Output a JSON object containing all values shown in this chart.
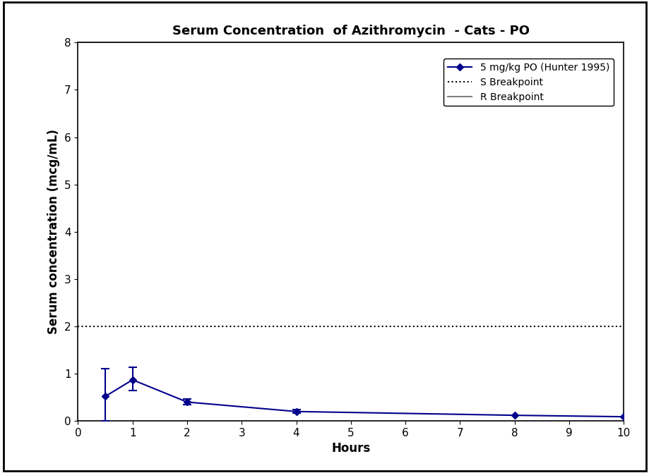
{
  "title": "Serum Concentration  of Azithromycin  - Cats - PO",
  "xlabel": "Hours",
  "ylabel": "Serum concentration (mcg/mL)",
  "xlim": [
    0,
    10
  ],
  "ylim": [
    0,
    8
  ],
  "xticks": [
    0,
    1,
    2,
    3,
    4,
    5,
    6,
    7,
    8,
    9,
    10
  ],
  "yticks": [
    0,
    1,
    2,
    3,
    4,
    5,
    6,
    7,
    8
  ],
  "x": [
    0.5,
    1.0,
    2.0,
    4.0,
    8.0,
    10.0
  ],
  "y": [
    0.52,
    0.87,
    0.4,
    0.2,
    0.12,
    0.09
  ],
  "yerr_neg": [
    0.52,
    0.22,
    0.05,
    0.03,
    0.0,
    0.0
  ],
  "yerr_pos": [
    0.58,
    0.27,
    0.07,
    0.04,
    0.0,
    0.0
  ],
  "has_errorbar": [
    true,
    true,
    true,
    true,
    false,
    false
  ],
  "line_color": "#00008B",
  "marker": "D",
  "marker_size": 5,
  "S_breakpoint": 2.0,
  "R_breakpoint": 8.0,
  "S_color": "#000000",
  "R_color": "#808080",
  "legend_label_data": "5 mg/kg PO (Hunter 1995)",
  "legend_label_S": "S Breakpoint",
  "legend_label_R": "R Breakpoint",
  "background_color": "#FFFFFF",
  "title_fontsize": 13,
  "axis_label_fontsize": 12,
  "tick_fontsize": 11,
  "legend_fontsize": 10
}
